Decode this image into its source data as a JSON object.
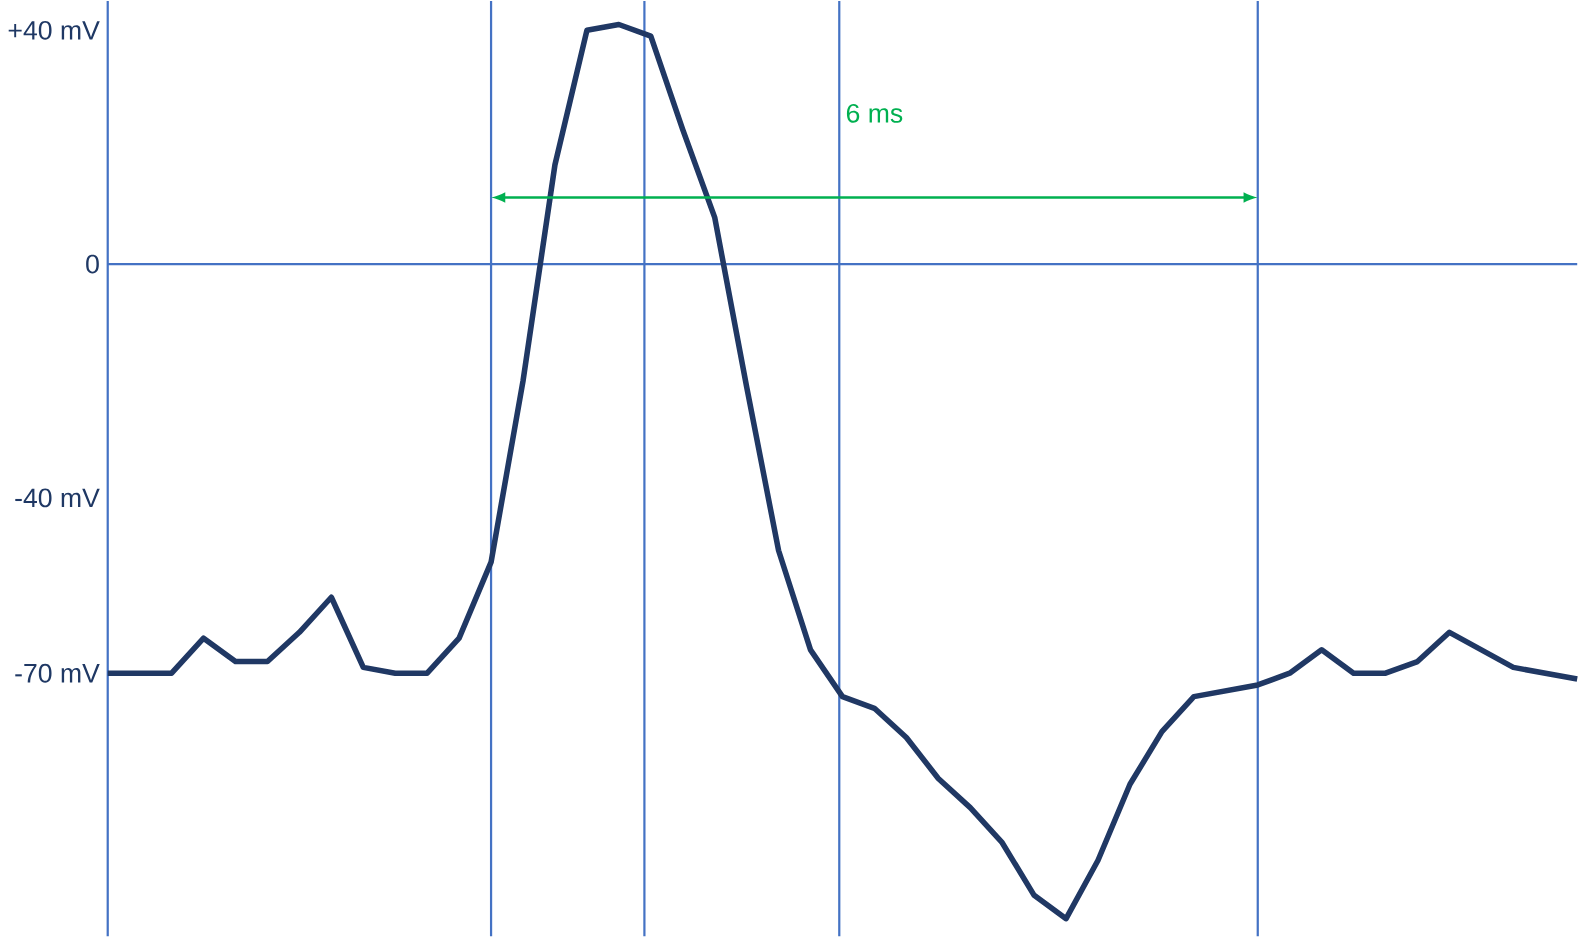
{
  "chart_data": {
    "type": "line",
    "ylim": [
      -115,
      45
    ],
    "yticks": [
      {
        "value": 40,
        "label": "+40 mV"
      },
      0,
      {
        "value": -40,
        "label": "-40 mV"
      },
      {
        "value": -70,
        "label": "-70 mV"
      }
    ],
    "tick_labels": "y",
    "categories": [
      null,
      null,
      null,
      null,
      null,
      null,
      null,
      null,
      null,
      null,
      null,
      null,
      null,
      null,
      null,
      null,
      null,
      null,
      null,
      null,
      null,
      null,
      null,
      null,
      null,
      null,
      null,
      null,
      null,
      null,
      null,
      null,
      null,
      null,
      null,
      null,
      null,
      null,
      null,
      null,
      null,
      null,
      null,
      null,
      null,
      null,
      null
    ],
    "series": [
      {
        "color": "#203864",
        "values": [
          -70,
          -70,
          -70,
          -64,
          -68,
          -68,
          -63,
          -57,
          -69,
          -70,
          -70,
          -64,
          -51,
          -20,
          17,
          40,
          41,
          39,
          23,
          8,
          -21,
          -49,
          -66,
          -74,
          -76,
          -81,
          -88,
          -93,
          -99,
          -108,
          -112,
          -102,
          -89,
          -80,
          -74,
          -73,
          -72,
          -70,
          -66,
          -70,
          -70,
          -68,
          -63,
          -66,
          -69,
          -70,
          -71
        ]
      }
    ],
    "grid": "x",
    "annotations": [
      "6 ms"
    ],
    "ref_lines": [
      {
        "axis": "y",
        "value": 0,
        "color": "#4472c4"
      }
    ]
  }
}
